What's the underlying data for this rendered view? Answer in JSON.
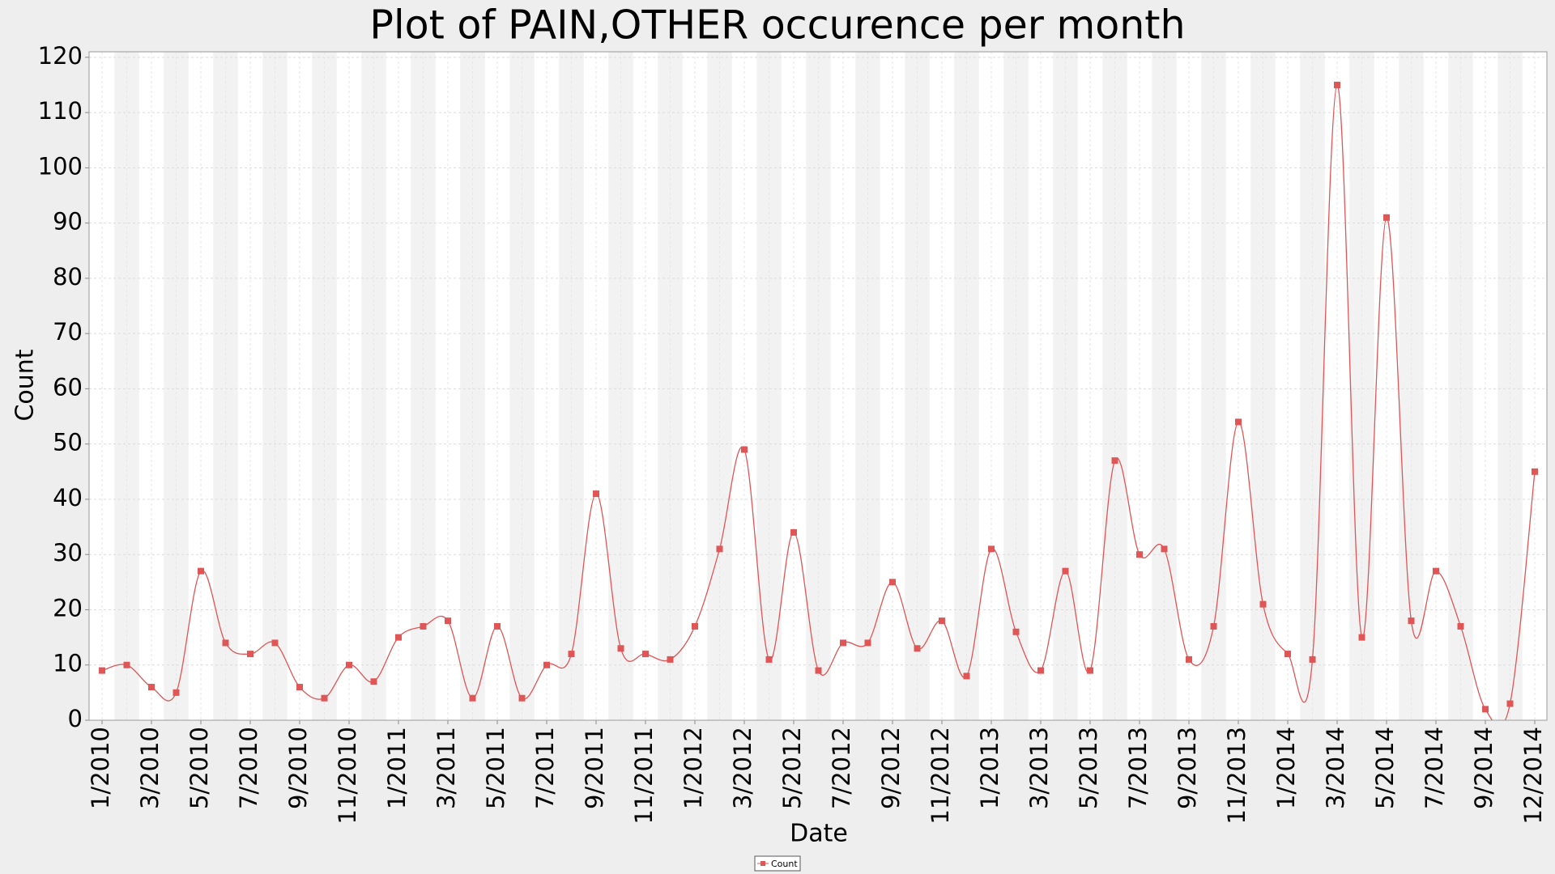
{
  "chart_data": {
    "type": "line",
    "title": "Plot of PAIN,OTHER occurence per month",
    "x_label": "Date",
    "y_label": "Count",
    "categories": [
      "1/2010",
      null,
      "3/2010",
      null,
      "5/2010",
      null,
      "7/2010",
      null,
      "9/2010",
      null,
      "11/2010",
      null,
      "1/2011",
      null,
      "3/2011",
      null,
      "5/2011",
      null,
      "7/2011",
      null,
      "9/2011",
      null,
      "11/2011",
      null,
      "1/2012",
      null,
      "3/2012",
      null,
      "5/2012",
      null,
      "7/2012",
      null,
      "9/2012",
      null,
      "11/2012",
      null,
      "1/2013",
      null,
      "3/2013",
      null,
      "5/2013",
      null,
      "7/2013",
      null,
      "9/2013",
      null,
      "11/2013",
      null,
      "1/2014",
      null,
      "3/2014",
      null,
      "5/2014",
      null,
      "7/2014",
      null,
      "9/2014",
      null,
      "12/2014"
    ],
    "series": [
      {
        "name": "Count",
        "color": "#e05555",
        "values": [
          9,
          10,
          6,
          5,
          27,
          14,
          12,
          14,
          6,
          4,
          10,
          7,
          15,
          17,
          18,
          4,
          17,
          4,
          10,
          12,
          41,
          13,
          12,
          11,
          17,
          31,
          49,
          11,
          34,
          9,
          14,
          14,
          25,
          13,
          18,
          8,
          31,
          16,
          9,
          27,
          9,
          47,
          30,
          31,
          11,
          17,
          54,
          21,
          12,
          11,
          115,
          15,
          91,
          18,
          27,
          17,
          2,
          3,
          45
        ]
      }
    ],
    "ylim": [
      0,
      121
    ],
    "yticks": [
      0,
      10,
      20,
      30,
      40,
      50,
      60,
      70,
      80,
      90,
      100,
      110,
      120
    ],
    "grid": true,
    "legend": "bottom"
  }
}
